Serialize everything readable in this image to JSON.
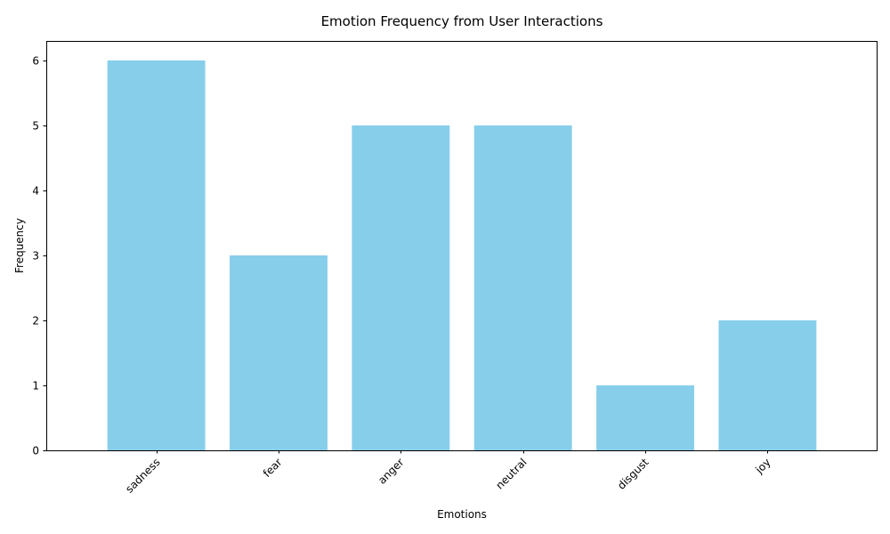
{
  "chart_data": {
    "type": "bar",
    "title": "Emotion Frequency from User Interactions",
    "xlabel": "Emotions",
    "ylabel": "Frequency",
    "categories": [
      "sadness",
      "fear",
      "anger",
      "neutral",
      "disgust",
      "joy"
    ],
    "values": [
      6,
      3,
      5,
      5,
      1,
      2
    ],
    "ylim": [
      0,
      6.3
    ],
    "yticks": [
      "0",
      "1",
      "2",
      "3",
      "4",
      "5",
      "6"
    ],
    "bar_color": "#87ceeb",
    "grid": false,
    "x_tick_rotation": "45 degrees"
  }
}
